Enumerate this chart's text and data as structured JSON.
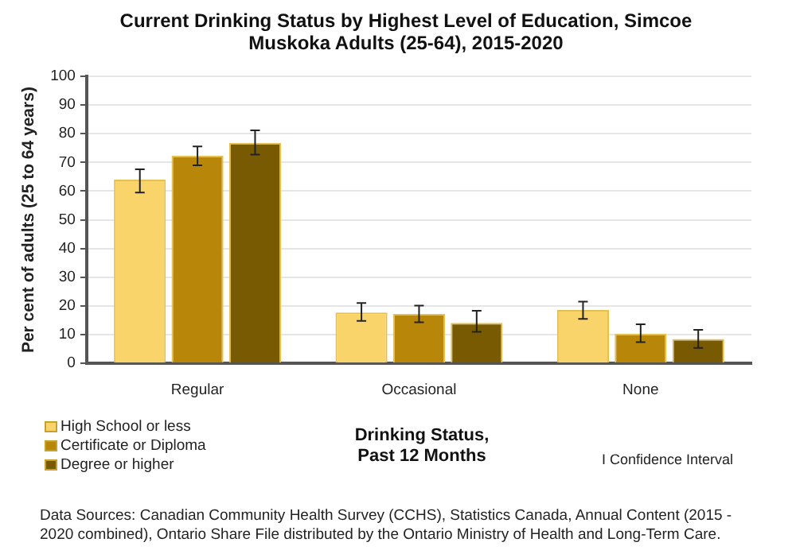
{
  "chart_data": {
    "type": "bar",
    "title": "Current Drinking Status by Highest Level of Education, Simcoe Muskoka Adults (25-64), 2015-2020",
    "xlabel": "Drinking  Status,\nPast 12 Months",
    "ylabel": "Per cent of adults (25 to 64 years)",
    "categories": [
      "Regular",
      "Occasional",
      "None"
    ],
    "series": [
      {
        "name": "High School or less",
        "color": "#f9d46b",
        "values": [
          64,
          17.7,
          18.6
        ],
        "errors": [
          [
            59.5,
            67.6
          ],
          [
            14.8,
            21
          ],
          [
            15.5,
            21.5
          ]
        ]
      },
      {
        "name": "Certificate or Diploma",
        "color": "#b8870a",
        "values": [
          72.3,
          17.2,
          10.3
        ],
        "errors": [
          [
            69,
            75.6
          ],
          [
            14.3,
            20.1
          ],
          [
            7.4,
            13.6
          ]
        ]
      },
      {
        "name": "Degree or higher",
        "color": "#785a02",
        "values": [
          76.8,
          14.1,
          8.5
        ],
        "errors": [
          [
            72.7,
            81.2
          ],
          [
            11,
            18.3
          ],
          [
            5.4,
            11.7
          ]
        ]
      }
    ],
    "ylim": [
      0,
      100
    ],
    "yticks": [
      0,
      10,
      20,
      30,
      40,
      50,
      60,
      70,
      80,
      90,
      100
    ],
    "grid": "y",
    "legend": "bottom left",
    "annotations": [
      "I Confidence Interval",
      "Data Sources: Canadian Community  Health Survey (CCHS), Statistics Canada, Annual Content  (2015 - 2020 combined), Ontario Share File  distributed by the Ontario Ministry of Health  and Long-Term Care."
    ]
  }
}
